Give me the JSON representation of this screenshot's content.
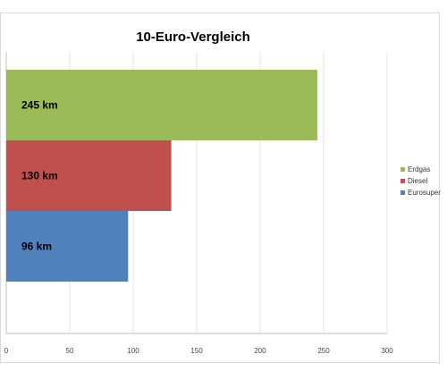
{
  "chart_data": {
    "type": "bar",
    "orientation": "horizontal",
    "title": "10-Euro-Vergleich",
    "xlabel": "",
    "ylabel": "",
    "xlim": [
      0,
      300
    ],
    "x_ticks": [
      0,
      50,
      100,
      150,
      200,
      250,
      300
    ],
    "grid": true,
    "legend_position": "right",
    "series": [
      {
        "name": "Eurosuper",
        "value": 96,
        "label": "96 km",
        "color": "#4f81bd"
      },
      {
        "name": "Diesel",
        "value": 130,
        "label": "130 km",
        "color": "#c0504d"
      },
      {
        "name": "Erdgas",
        "value": 245,
        "label": "245 km",
        "color": "#9bbb59"
      }
    ]
  }
}
